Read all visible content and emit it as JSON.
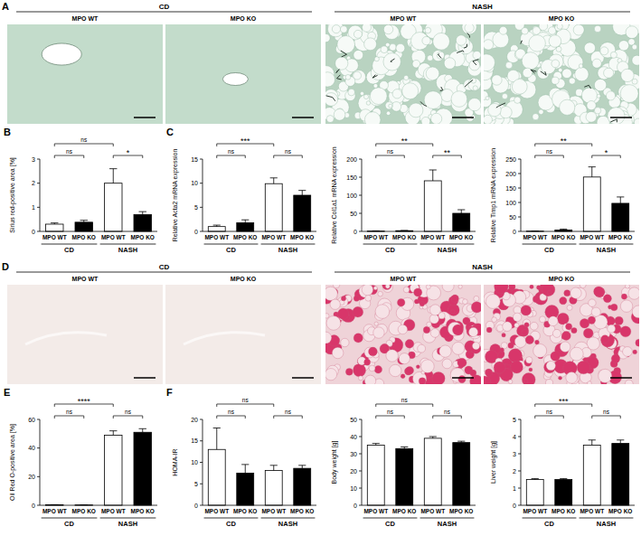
{
  "image_panels": [
    {
      "letter": "A",
      "groups": [
        {
          "label": "CD",
          "columns": [
            "MPO WT",
            "MPO KO"
          ]
        },
        {
          "label": "NASH",
          "columns": [
            "MPO WT",
            "MPO KO"
          ]
        }
      ]
    },
    {
      "letter": "D",
      "groups": [
        {
          "label": "CD",
          "columns": [
            "MPO WT",
            "MPO KO"
          ]
        },
        {
          "label": "NASH",
          "columns": [
            "MPO WT",
            "MPO KO"
          ]
        }
      ]
    }
  ],
  "chart_data": [
    {
      "type": "bar",
      "panel": "B",
      "ylabel": "Sirius red-positive area [%]",
      "categories": [
        "MPO WT",
        "MPO KO",
        "MPO WT",
        "MPO KO"
      ],
      "groups": [
        "CD",
        "NASH"
      ],
      "values": [
        0.3,
        0.38,
        2.0,
        0.7
      ],
      "errors": [
        0.05,
        0.08,
        0.6,
        0.12
      ],
      "colors": [
        "#ffffff",
        "#000000",
        "#ffffff",
        "#000000"
      ],
      "ylim": [
        0,
        3
      ],
      "yticks": [
        0,
        1,
        2,
        3
      ],
      "comparisons": [
        {
          "from": 0,
          "to": 2,
          "label": "ns"
        },
        {
          "from": 0,
          "to": 1,
          "label": "ns"
        },
        {
          "from": 2,
          "to": 3,
          "label": "*"
        }
      ]
    },
    {
      "type": "bar",
      "panel": "C",
      "ylabel": "Relative Acta2 mRNA expression",
      "categories": [
        "MPO WT",
        "MPO KO",
        "MPO WT",
        "MPO KO"
      ],
      "groups": [
        "CD",
        "NASH"
      ],
      "values": [
        1.0,
        1.8,
        9.9,
        7.5
      ],
      "errors": [
        0.3,
        0.6,
        1.2,
        1.0
      ],
      "colors": [
        "#ffffff",
        "#000000",
        "#ffffff",
        "#000000"
      ],
      "ylim": [
        0,
        15
      ],
      "yticks": [
        0,
        5,
        10,
        15
      ],
      "comparisons": [
        {
          "from": 0,
          "to": 2,
          "label": "***"
        },
        {
          "from": 0,
          "to": 1,
          "label": "ns"
        },
        {
          "from": 2,
          "to": 3,
          "label": "ns"
        }
      ]
    },
    {
      "type": "bar",
      "ylabel": "Relative Col1a1 mRNA expression",
      "categories": [
        "MPO WT",
        "MPO KO",
        "MPO WT",
        "MPO KO"
      ],
      "groups": [
        "CD",
        "NASH"
      ],
      "values": [
        1,
        2,
        140,
        50
      ],
      "errors": [
        0.5,
        0.5,
        30,
        10
      ],
      "colors": [
        "#ffffff",
        "#000000",
        "#ffffff",
        "#000000"
      ],
      "ylim": [
        0,
        200
      ],
      "yticks": [
        0,
        50,
        100,
        150,
        200
      ],
      "comparisons": [
        {
          "from": 0,
          "to": 2,
          "label": "**"
        },
        {
          "from": 0,
          "to": 1,
          "label": "ns"
        },
        {
          "from": 2,
          "to": 3,
          "label": "**"
        }
      ]
    },
    {
      "type": "bar",
      "ylabel": "Relative Timp1 mRNA expression",
      "categories": [
        "MPO WT",
        "MPO KO",
        "MPO WT",
        "MPO KO"
      ],
      "groups": [
        "CD",
        "NASH"
      ],
      "values": [
        1,
        5,
        188,
        97
      ],
      "errors": [
        0.5,
        3,
        35,
        22
      ],
      "colors": [
        "#ffffff",
        "#000000",
        "#ffffff",
        "#000000"
      ],
      "ylim": [
        0,
        250
      ],
      "yticks": [
        0,
        50,
        100,
        150,
        200,
        250
      ],
      "comparisons": [
        {
          "from": 0,
          "to": 2,
          "label": "**"
        },
        {
          "from": 0,
          "to": 1,
          "label": "ns"
        },
        {
          "from": 2,
          "to": 3,
          "label": "*"
        }
      ]
    },
    {
      "type": "bar",
      "panel": "E",
      "ylabel": "Oil Red O-positive area [%]",
      "categories": [
        "MPO WT",
        "MPO KO",
        "MPO WT",
        "MPO KO"
      ],
      "groups": [
        "CD",
        "NASH"
      ],
      "values": [
        0.3,
        0.2,
        49,
        51
      ],
      "errors": [
        0.1,
        0.1,
        3,
        2.5
      ],
      "colors": [
        "#ffffff",
        "#000000",
        "#ffffff",
        "#000000"
      ],
      "ylim": [
        0,
        60
      ],
      "yticks": [
        0,
        20,
        40,
        60
      ],
      "comparisons": [
        {
          "from": 0,
          "to": 2,
          "label": "****"
        },
        {
          "from": 0,
          "to": 1,
          "label": "ns"
        },
        {
          "from": 2,
          "to": 3,
          "label": "ns"
        }
      ]
    },
    {
      "type": "bar",
      "panel": "F",
      "ylabel": "HOMA-IR",
      "categories": [
        "MPO WT",
        "MPO KO",
        "MPO WT",
        "MPO KO"
      ],
      "groups": [
        "CD",
        "NASH"
      ],
      "values": [
        13,
        7.5,
        8.1,
        8.6
      ],
      "errors": [
        5,
        2,
        1.2,
        0.7
      ],
      "colors": [
        "#ffffff",
        "#000000",
        "#ffffff",
        "#000000"
      ],
      "ylim": [
        0,
        20
      ],
      "yticks": [
        0,
        5,
        10,
        15,
        20
      ],
      "comparisons": [
        {
          "from": 0,
          "to": 2,
          "label": "ns"
        },
        {
          "from": 0,
          "to": 1,
          "label": "ns"
        },
        {
          "from": 2,
          "to": 3,
          "label": "ns"
        }
      ]
    },
    {
      "type": "bar",
      "ylabel": "Body weight [g]",
      "categories": [
        "MPO WT",
        "MPO KO",
        "MPO WT",
        "MPO KO"
      ],
      "groups": [
        "CD",
        "NASH"
      ],
      "values": [
        35,
        33,
        39,
        36.5
      ],
      "errors": [
        1,
        1,
        1,
        0.8
      ],
      "colors": [
        "#ffffff",
        "#000000",
        "#ffffff",
        "#000000"
      ],
      "ylim": [
        0,
        50
      ],
      "yticks": [
        0,
        10,
        20,
        30,
        40,
        50
      ],
      "comparisons": [
        {
          "from": 0,
          "to": 2,
          "label": "ns"
        },
        {
          "from": 0,
          "to": 1,
          "label": "ns"
        },
        {
          "from": 2,
          "to": 3,
          "label": "ns"
        }
      ]
    },
    {
      "type": "bar",
      "ylabel": "Liver weight [g]",
      "categories": [
        "MPO WT",
        "MPO KO",
        "MPO WT",
        "MPO KO"
      ],
      "groups": [
        "CD",
        "NASH"
      ],
      "values": [
        1.5,
        1.5,
        3.5,
        3.6
      ],
      "errors": [
        0.05,
        0.05,
        0.3,
        0.2
      ],
      "colors": [
        "#ffffff",
        "#000000",
        "#ffffff",
        "#000000"
      ],
      "ylim": [
        0,
        5
      ],
      "yticks": [
        0,
        1,
        2,
        3,
        4,
        5
      ],
      "comparisons": [
        {
          "from": 0,
          "to": 2,
          "label": "***"
        },
        {
          "from": 0,
          "to": 1,
          "label": "ns"
        },
        {
          "from": 2,
          "to": 3,
          "label": "ns"
        }
      ]
    }
  ]
}
